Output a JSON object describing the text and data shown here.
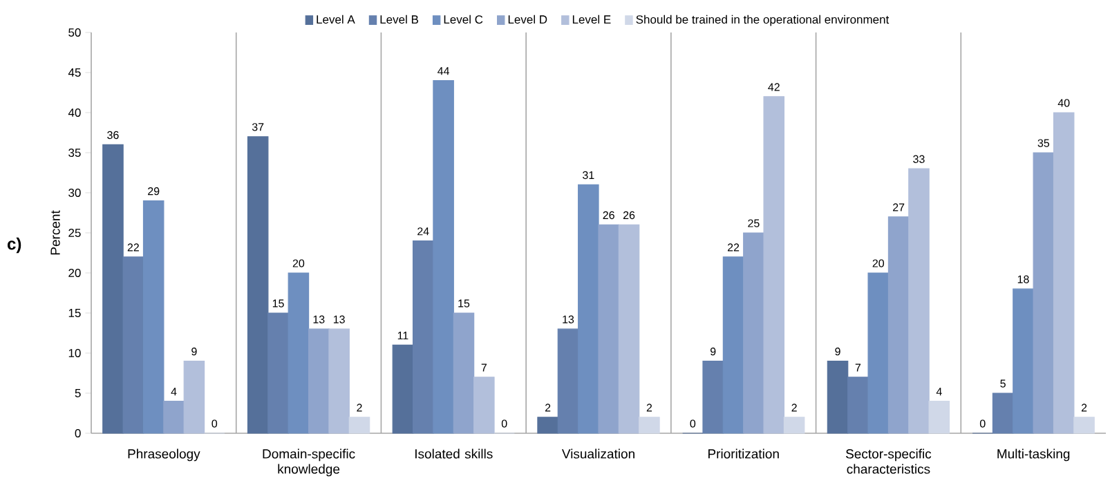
{
  "chart_data": {
    "type": "bar",
    "ylabel": "Percent",
    "annotations": [
      "c)"
    ],
    "categories": [
      "Phraseology",
      "Domain-specific knowledge",
      "Isolated skills",
      "Visualization",
      "Prioritization",
      "Sector-specific characteristics",
      "Multi-tasking"
    ],
    "series": [
      {
        "name": "Level A",
        "color": "#55709a",
        "values": [
          36,
          37,
          11,
          2,
          0,
          9,
          0
        ]
      },
      {
        "name": "Level B",
        "color": "#6580ae",
        "values": [
          22,
          15,
          24,
          13,
          9,
          7,
          5
        ]
      },
      {
        "name": "Level C",
        "color": "#6e8fc0",
        "values": [
          29,
          20,
          44,
          31,
          22,
          20,
          18
        ]
      },
      {
        "name": "Level D",
        "color": "#8fa4cc",
        "values": [
          4,
          13,
          15,
          26,
          25,
          27,
          35
        ]
      },
      {
        "name": "Level E",
        "color": "#b2bfdb",
        "values": [
          9,
          13,
          7,
          26,
          42,
          33,
          40
        ]
      },
      {
        "name": "Should be trained in the operational environment",
        "color": "#d0d8e8",
        "values": [
          0,
          2,
          0,
          2,
          2,
          4,
          2
        ]
      }
    ],
    "ylim": [
      0,
      50
    ],
    "yticks": [
      0,
      5,
      10,
      15,
      20,
      25,
      30,
      35,
      40,
      45,
      50
    ],
    "grid": "x",
    "legend": "top",
    "data_labels": true
  }
}
